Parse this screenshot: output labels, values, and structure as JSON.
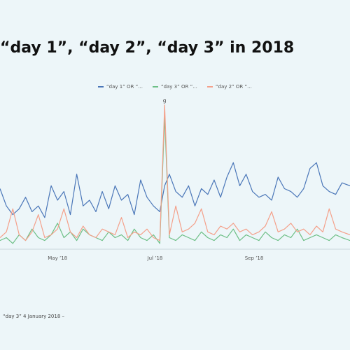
{
  "title": "“day 1”, “day 2”, “day 3” in 2018",
  "footer": "“day 3” 4 January 2018 –",
  "colors": {
    "background": "#edf6f9",
    "blue": "#4a76b8",
    "green": "#6dbf86",
    "orange": "#f4a08a"
  },
  "legend": [
    {
      "label": "“day 1” OR “...",
      "color": "#4a76b8"
    },
    {
      "label": "“day 3” OR “...",
      "color": "#6dbf86"
    },
    {
      "label": "“day 2” OR “...",
      "color": "#f4a08a"
    }
  ],
  "chart_data": {
    "type": "line",
    "title": "“day 1”, “day 2”, “day 3” in 2018",
    "xlabel": "",
    "ylabel": "",
    "x_range": [
      "2018-03-26",
      "2018-10-31"
    ],
    "ylim": [
      0,
      100
    ],
    "x_ticks": [
      {
        "date": "2018-05-01",
        "label": "May ’18"
      },
      {
        "date": "2018-07-01",
        "label": "Jul ’18"
      },
      {
        "date": "2018-09-01",
        "label": "Sep ’18"
      }
    ],
    "grid": false,
    "legend_position": "top",
    "annotations": [
      {
        "date": "2018-07-07",
        "label": "g"
      }
    ],
    "x": [
      "2018-03-26",
      "2018-03-30",
      "2018-04-03",
      "2018-04-07",
      "2018-04-11",
      "2018-04-15",
      "2018-04-19",
      "2018-04-23",
      "2018-04-27",
      "2018-05-01",
      "2018-05-05",
      "2018-05-09",
      "2018-05-13",
      "2018-05-17",
      "2018-05-21",
      "2018-05-25",
      "2018-05-29",
      "2018-06-02",
      "2018-06-06",
      "2018-06-10",
      "2018-06-14",
      "2018-06-18",
      "2018-06-22",
      "2018-06-26",
      "2018-06-30",
      "2018-07-04",
      "2018-07-07",
      "2018-07-10",
      "2018-07-14",
      "2018-07-18",
      "2018-07-22",
      "2018-07-26",
      "2018-07-30",
      "2018-08-03",
      "2018-08-07",
      "2018-08-11",
      "2018-08-15",
      "2018-08-19",
      "2018-08-23",
      "2018-08-27",
      "2018-08-31",
      "2018-09-04",
      "2018-09-08",
      "2018-09-12",
      "2018-09-16",
      "2018-09-20",
      "2018-09-24",
      "2018-09-28",
      "2018-10-02",
      "2018-10-06",
      "2018-10-10",
      "2018-10-14",
      "2018-10-18",
      "2018-10-22",
      "2018-10-26",
      "2018-10-31"
    ],
    "series": [
      {
        "name": "“day 1” OR “...",
        "color": "#4a76b8",
        "values": [
          42,
          30,
          24,
          28,
          36,
          26,
          30,
          22,
          44,
          34,
          40,
          24,
          52,
          30,
          34,
          26,
          40,
          28,
          44,
          34,
          38,
          24,
          48,
          36,
          30,
          26,
          44,
          52,
          40,
          36,
          44,
          30,
          42,
          38,
          48,
          36,
          50,
          60,
          44,
          52,
          40,
          36,
          38,
          34,
          50,
          42,
          40,
          36,
          42,
          56,
          60,
          44,
          40,
          38,
          46,
          44
        ]
      },
      {
        "name": "“day 3” OR “...",
        "color": "#6dbf86",
        "values": [
          6,
          8,
          4,
          10,
          6,
          14,
          8,
          6,
          10,
          18,
          8,
          12,
          6,
          14,
          10,
          8,
          6,
          12,
          8,
          10,
          6,
          14,
          8,
          6,
          10,
          4,
          92,
          8,
          6,
          10,
          8,
          6,
          12,
          8,
          6,
          10,
          8,
          14,
          6,
          10,
          8,
          6,
          12,
          8,
          6,
          10,
          8,
          14,
          6,
          8,
          10,
          8,
          6,
          10,
          8,
          6
        ]
      },
      {
        "name": "“day 2” OR “...",
        "color": "#f4a08a",
        "values": [
          8,
          12,
          28,
          10,
          6,
          12,
          24,
          8,
          10,
          14,
          28,
          12,
          8,
          16,
          10,
          8,
          14,
          12,
          10,
          22,
          8,
          12,
          10,
          14,
          8,
          6,
          100,
          10,
          30,
          12,
          14,
          18,
          28,
          12,
          10,
          16,
          14,
          18,
          12,
          14,
          10,
          12,
          16,
          26,
          12,
          14,
          18,
          12,
          14,
          10,
          16,
          12,
          28,
          14,
          12,
          10
        ]
      }
    ]
  }
}
